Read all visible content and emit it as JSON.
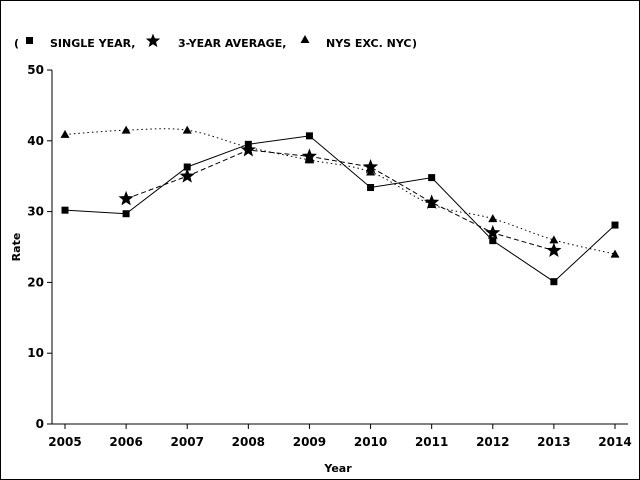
{
  "chart_data": {
    "type": "line",
    "xlabel": "Year",
    "ylabel": "Rate",
    "x": [
      2005,
      2006,
      2007,
      2008,
      2009,
      2010,
      2011,
      2012,
      2013,
      2014
    ],
    "ylim": [
      0,
      50
    ],
    "yticks": [
      0,
      10,
      20,
      30,
      40,
      50
    ],
    "grid": false,
    "legend_position": "top-left",
    "legend_open": "(",
    "legend_close": ")",
    "series": [
      {
        "name": "SINGLE YEAR,",
        "marker": "square",
        "line": "solid",
        "x": [
          2005,
          2006,
          2007,
          2008,
          2009,
          2010,
          2011,
          2012,
          2013,
          2014
        ],
        "values": [
          30.2,
          29.7,
          36.3,
          39.5,
          40.7,
          33.4,
          34.8,
          25.9,
          20.1,
          28.1
        ]
      },
      {
        "name": "3-YEAR AVERAGE,",
        "marker": "star",
        "line": "dashed",
        "x": [
          2006,
          2007,
          2008,
          2009,
          2010,
          2011,
          2012,
          2013
        ],
        "values": [
          31.8,
          35.0,
          38.7,
          37.8,
          36.3,
          31.3,
          27.0,
          24.5
        ]
      },
      {
        "name": "NYS EXC. NYC",
        "marker": "triangle",
        "line": "dotted",
        "x": [
          2005,
          2006,
          2007,
          2008,
          2009,
          2010,
          2011,
          2012,
          2013,
          2014
        ],
        "values": [
          40.9,
          41.5,
          41.5,
          39.1,
          37.3,
          35.6,
          31.0,
          29.0,
          26.0,
          24.0
        ]
      }
    ]
  }
}
